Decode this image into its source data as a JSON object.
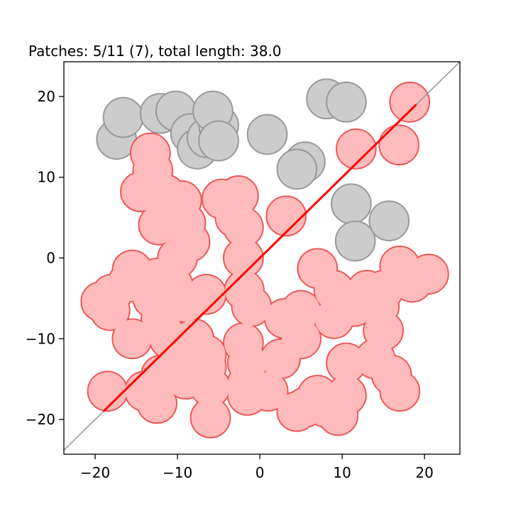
{
  "chart_data": {
    "type": "scatter",
    "title": "Patches: 5/11 (7), total length: 38.0",
    "xlabel": "",
    "ylabel": "",
    "xlim": [
      -23.8,
      24.3
    ],
    "ylim": [
      -24.3,
      24.3
    ],
    "x_ticks": [
      "−20",
      "−10",
      "0",
      "10",
      "20"
    ],
    "y_ticks": [
      "−20",
      "−10",
      "0",
      "10",
      "20"
    ],
    "x_tick_values": [
      -20,
      -10,
      0,
      10,
      20
    ],
    "y_tick_values": [
      -20,
      -10,
      0,
      10,
      20
    ],
    "grid": false,
    "circle_radius": 2.4,
    "colors": {
      "red_fill": "#ffbbbb",
      "red_edge": "#ee5555",
      "gray_fill": "#cccccc",
      "gray_edge": "#999999",
      "diagonal": "#999999",
      "segment": "#ff0000"
    },
    "diagonal_line": {
      "from": [
        -23.8,
        -23.8
      ],
      "to": [
        24.3,
        24.3
      ]
    },
    "highlight_segment": {
      "from": [
        -19,
        -19
      ],
      "to": [
        19,
        19
      ]
    },
    "gray_circles": [
      [
        -17.4,
        14.7
      ],
      [
        -16.6,
        17.4
      ],
      [
        -12.1,
        17.9
      ],
      [
        -10.2,
        18.2
      ],
      [
        -8.4,
        15.4
      ],
      [
        -7.6,
        13.5
      ],
      [
        -6.4,
        14.9
      ],
      [
        -5.0,
        16.4
      ],
      [
        -5.7,
        18.2
      ],
      [
        -5.0,
        14.5
      ],
      [
        0.9,
        15.3
      ],
      [
        5.5,
        11.9
      ],
      [
        4.5,
        11.0
      ],
      [
        8.1,
        19.7
      ],
      [
        10.5,
        19.3
      ],
      [
        11.1,
        6.7
      ],
      [
        11.6,
        2.1
      ],
      [
        15.7,
        4.6
      ]
    ],
    "red_circles": [
      [
        18.2,
        19.3
      ],
      [
        16.9,
        14.0
      ],
      [
        11.7,
        13.5
      ],
      [
        3.2,
        5.2
      ],
      [
        -13.3,
        13.0
      ],
      [
        -13.0,
        10.8
      ],
      [
        -14.5,
        8.2
      ],
      [
        -11.5,
        7.9
      ],
      [
        -9.5,
        7.1
      ],
      [
        -12.3,
        4.1
      ],
      [
        -9.0,
        4.3
      ],
      [
        -8.5,
        2.0
      ],
      [
        -4.6,
        7.3
      ],
      [
        -2.6,
        7.7
      ],
      [
        -3.0,
        5.0
      ],
      [
        -2.0,
        3.8
      ],
      [
        -2.0,
        0.0
      ],
      [
        -1.9,
        -4.0
      ],
      [
        -10.0,
        0.0
      ],
      [
        -10.5,
        -3.5
      ],
      [
        -12.5,
        -2.5
      ],
      [
        -15.5,
        -1.5
      ],
      [
        -16.0,
        -3.0
      ],
      [
        -18.0,
        -4.5
      ],
      [
        -19.3,
        -5.4
      ],
      [
        -18.2,
        -6.5
      ],
      [
        -13.0,
        -5.0
      ],
      [
        -12.0,
        -7.5
      ],
      [
        -15.5,
        -10.0
      ],
      [
        -11.0,
        -10.0
      ],
      [
        -9.0,
        -5.5
      ],
      [
        -6.5,
        -4.5
      ],
      [
        -8.0,
        -10.0
      ],
      [
        -6.5,
        -12.0
      ],
      [
        -10.0,
        -12.5
      ],
      [
        -12.0,
        -14.5
      ],
      [
        -12.5,
        -18.0
      ],
      [
        -14.0,
        -16.5
      ],
      [
        -18.5,
        -16.5
      ],
      [
        -9.0,
        -15.0
      ],
      [
        -6.5,
        -13.5
      ],
      [
        -6.0,
        -16.0
      ],
      [
        -6.0,
        -19.8
      ],
      [
        -2.0,
        -10.5
      ],
      [
        -1.5,
        -13.0
      ],
      [
        -1.5,
        -15.5
      ],
      [
        -1.5,
        -17.0
      ],
      [
        2.5,
        -12.5
      ],
      [
        1.0,
        -16.5
      ],
      [
        -1.0,
        -6.0
      ],
      [
        3.0,
        -7.5
      ],
      [
        5.0,
        -6.5
      ],
      [
        5.0,
        -10.0
      ],
      [
        7.0,
        -1.3
      ],
      [
        9.0,
        -4.0
      ],
      [
        9.0,
        -7.5
      ],
      [
        11.5,
        -6.0
      ],
      [
        13.0,
        -4.0
      ],
      [
        14.5,
        -6.0
      ],
      [
        15.0,
        -9.0
      ],
      [
        10.5,
        -13.0
      ],
      [
        14.0,
        -12.5
      ],
      [
        16.0,
        -14.5
      ],
      [
        17.0,
        -16.5
      ],
      [
        17.0,
        -1.0
      ],
      [
        18.5,
        -3.0
      ],
      [
        20.5,
        -2.0
      ],
      [
        15.0,
        -4.0
      ],
      [
        5.5,
        -18.5
      ],
      [
        4.5,
        -19.0
      ],
      [
        8.0,
        -18.5
      ],
      [
        9.5,
        -19.5
      ],
      [
        10.5,
        -17.0
      ],
      [
        7.0,
        -17.0
      ]
    ]
  }
}
